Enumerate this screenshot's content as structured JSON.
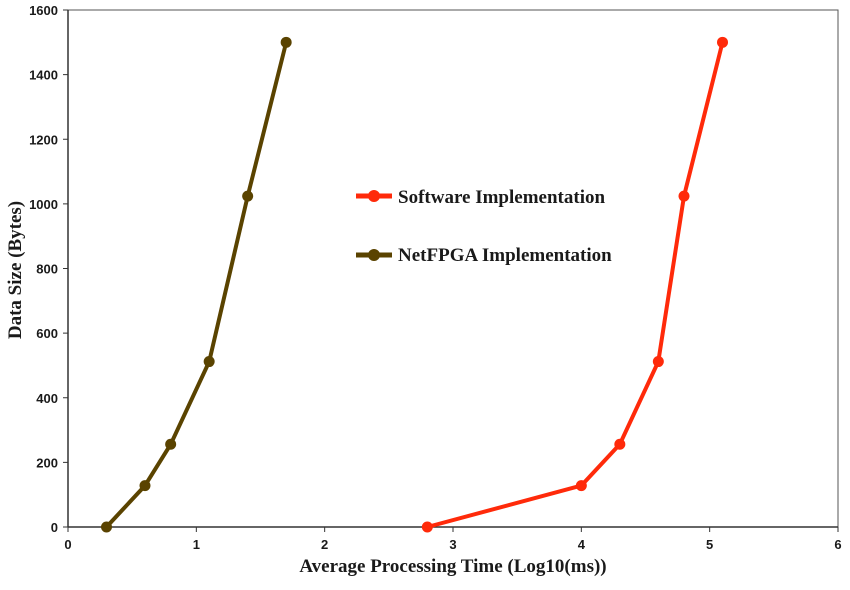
{
  "chart_data": {
    "type": "line",
    "xlabel": "Average Processing Time (Log10(ms))",
    "ylabel": "Data Size (Bytes)",
    "xlim": [
      0,
      6
    ],
    "ylim": [
      0,
      1600
    ],
    "x_ticks": [
      "0",
      "1",
      "2",
      "3",
      "4",
      "5",
      "6"
    ],
    "y_ticks": [
      "0",
      "200",
      "400",
      "600",
      "800",
      "1000",
      "1200",
      "1400",
      "1600"
    ],
    "grid": false,
    "legend_placement": "center",
    "series": [
      {
        "name": "Software Implementation",
        "color": "#ff2a0a",
        "points": [
          {
            "x": 2.8,
            "y": 0
          },
          {
            "x": 4.0,
            "y": 128
          },
          {
            "x": 4.3,
            "y": 256
          },
          {
            "x": 4.6,
            "y": 512
          },
          {
            "x": 4.8,
            "y": 1024
          },
          {
            "x": 5.1,
            "y": 1500
          }
        ]
      },
      {
        "name": "NetFPGA Implementation",
        "color": "#5a4300",
        "points": [
          {
            "x": 0.3,
            "y": 0
          },
          {
            "x": 0.6,
            "y": 128
          },
          {
            "x": 0.8,
            "y": 256
          },
          {
            "x": 1.1,
            "y": 512
          },
          {
            "x": 1.4,
            "y": 1024
          },
          {
            "x": 1.7,
            "y": 1500
          }
        ]
      }
    ]
  }
}
